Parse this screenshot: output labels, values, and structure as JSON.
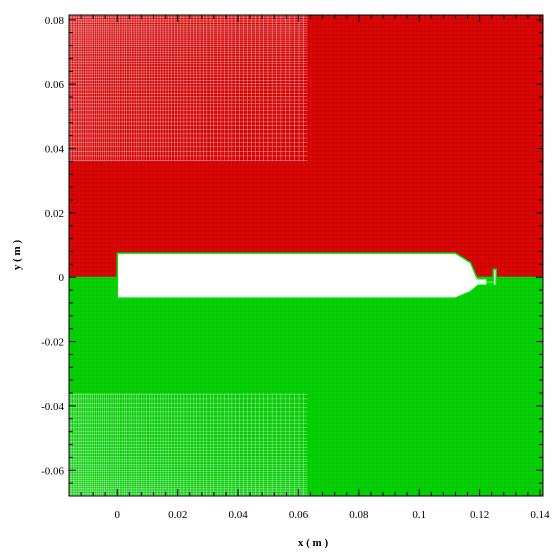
{
  "chart_data": {
    "type": "heatmap",
    "title": "",
    "xlabel": "x ( m )",
    "ylabel": "y ( m )",
    "xlim": [
      -0.016,
      0.141
    ],
    "ylim": [
      -0.068,
      0.0815
    ],
    "x_ticks": [
      0,
      0.02,
      0.04,
      0.06,
      0.08,
      0.1,
      0.12,
      0.14
    ],
    "x_tick_labels": [
      "0",
      "0.02",
      "0.04",
      "0.06",
      "0.08",
      "0.1",
      "0.12",
      "0.14"
    ],
    "y_ticks": [
      0.08,
      0.06,
      0.04,
      0.02,
      0,
      -0.02,
      -0.04,
      -0.06
    ],
    "y_tick_labels": [
      "0.08",
      "0.06",
      "0.04",
      "0.02",
      "0",
      "-0.02",
      "-0.04",
      "-0.06"
    ],
    "grid": false,
    "colors": {
      "upper_region": "#d40000",
      "lower_region": "#00cc00",
      "interface": "#00e000",
      "body": "#ffffff",
      "mesh_line": "#ffffff"
    },
    "regions": [
      {
        "region": "upper",
        "y_range": [
          0,
          0.0815
        ],
        "color": "#d40000"
      },
      {
        "region": "lower",
        "y_range": [
          -0.068,
          0
        ],
        "color": "#00cc00"
      }
    ],
    "body_outline": [
      [
        0,
        0.0075
      ],
      [
        0.112,
        0.0075
      ],
      [
        0.117,
        0.0045
      ],
      [
        0.119,
        0.0
      ],
      [
        0.1195,
        -0.0005
      ],
      [
        0.1225,
        -0.0005
      ],
      [
        0.1225,
        -0.0012
      ],
      [
        0.1245,
        -0.0012
      ],
      [
        0.1245,
        0.0025
      ],
      [
        0.1255,
        0.0025
      ],
      [
        0.1255,
        -0.0025
      ],
      [
        0.1245,
        -0.0025
      ],
      [
        0.1245,
        -0.0018
      ],
      [
        0.1225,
        -0.0018
      ],
      [
        0.1225,
        -0.0025
      ],
      [
        0.1195,
        -0.0025
      ],
      [
        0.117,
        -0.0045
      ],
      [
        0.112,
        -0.0065
      ],
      [
        0,
        -0.0065
      ]
    ],
    "dense_mesh_zone": {
      "x_range": [
        -0.016,
        0.063
      ],
      "y_abs_min": 0.036
    }
  }
}
